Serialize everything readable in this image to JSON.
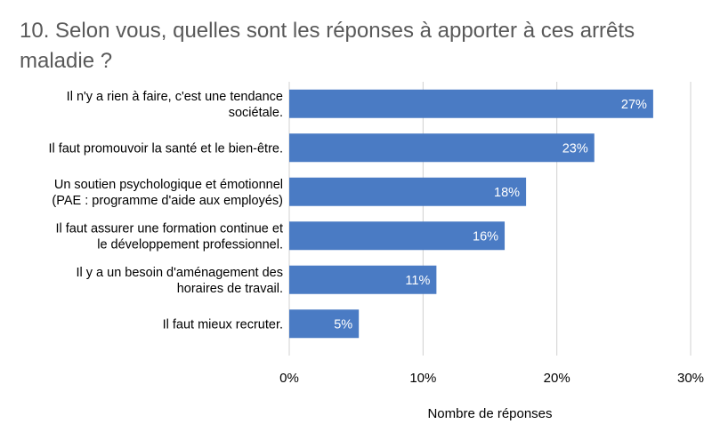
{
  "chart_data": {
    "type": "bar",
    "orientation": "horizontal",
    "title": "10. Selon vous, quelles sont les réponses à apporter à ces arrêts maladie ?",
    "xlabel": "Nombre de réponses",
    "ylabel": "",
    "categories": [
      [
        "Il n'y a rien à faire, c'est une tendance",
        "sociétale."
      ],
      [
        "Il faut promouvoir la santé et le bien-être."
      ],
      [
        "Un soutien psychologique et émotionnel",
        "(PAE : programme d'aide aux employés)"
      ],
      [
        "Il faut assurer une formation continue et",
        "le développement professionnel."
      ],
      [
        "Il y a un besoin d'aménagement des",
        "horaires de travail."
      ],
      [
        "Il faut mieux recruter."
      ]
    ],
    "values": [
      27.2,
      22.8,
      17.7,
      16.1,
      11.0,
      5.2
    ],
    "value_labels": [
      "27%",
      "23%",
      "18%",
      "16%",
      "11%",
      "5%"
    ],
    "xlim": [
      0,
      30
    ],
    "ticks": [
      0,
      10,
      20,
      30
    ],
    "tick_labels": [
      "0%",
      "10%",
      "20%",
      "30%"
    ],
    "grid": true,
    "bar_color": "#4a7bc4",
    "grid_color": "#d0d0d0",
    "title_color": "#595959"
  }
}
